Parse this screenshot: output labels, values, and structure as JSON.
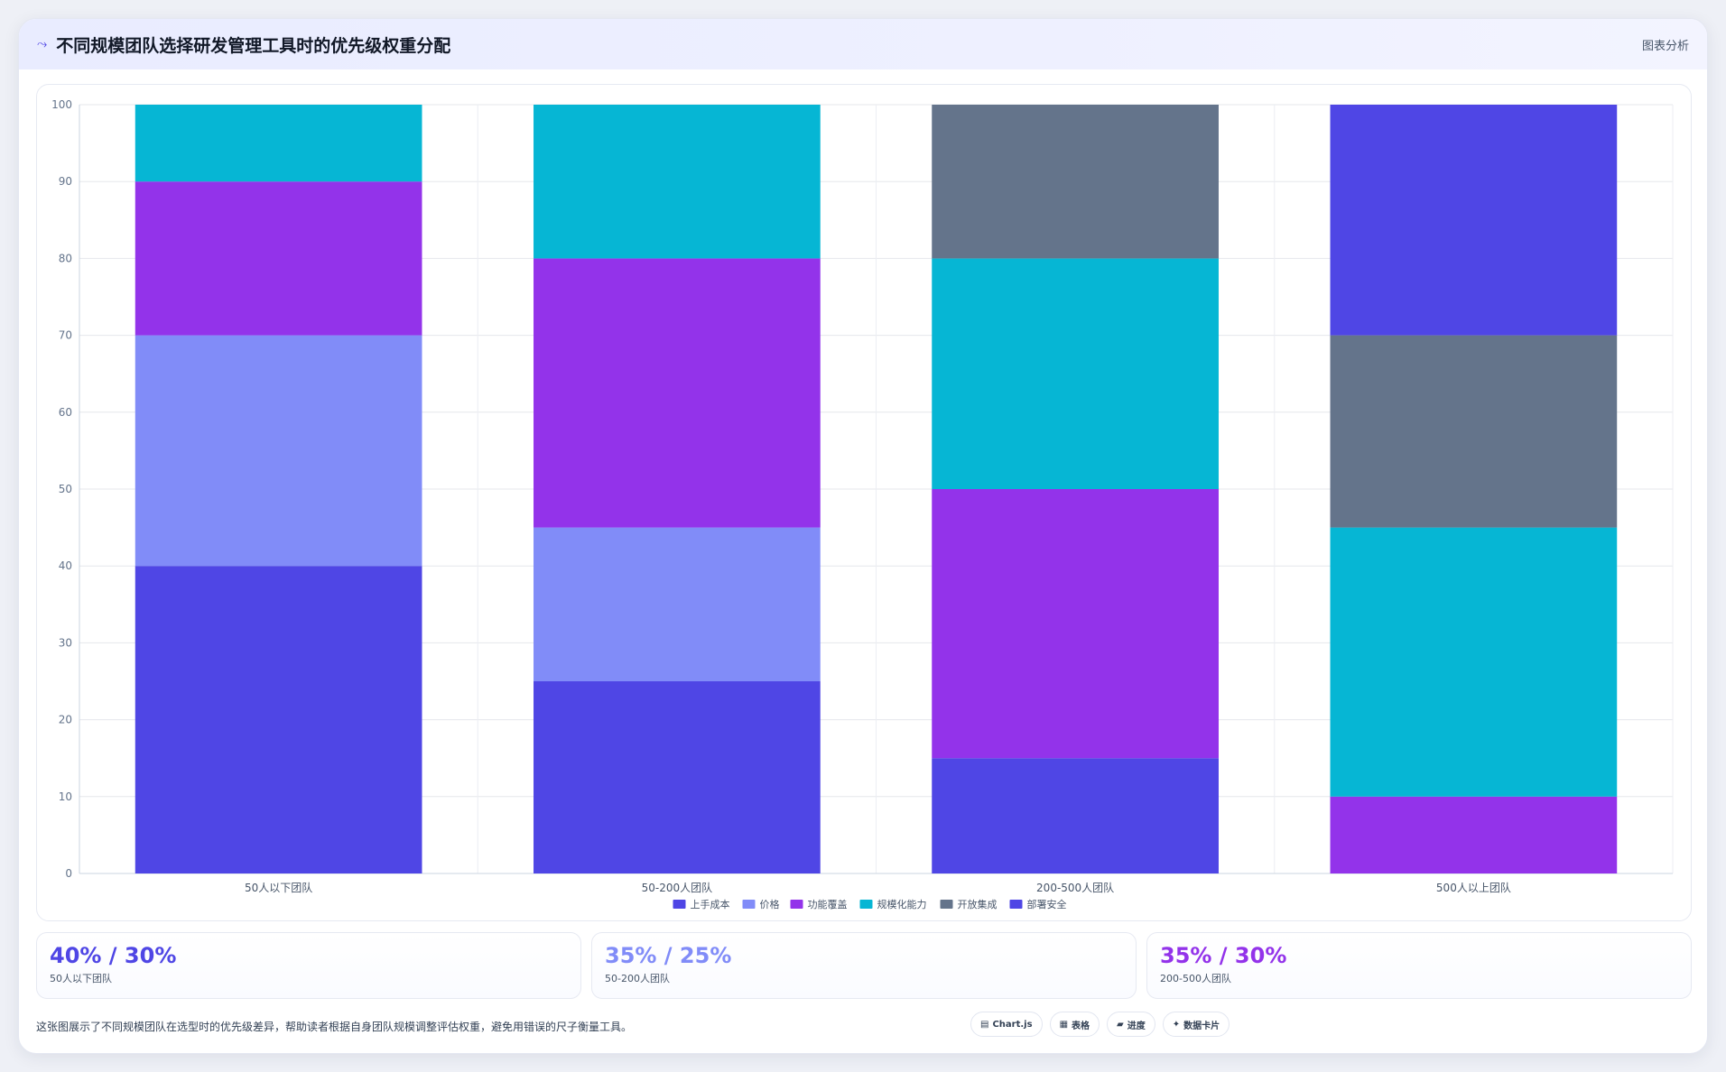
{
  "header": {
    "title": "不同规模团队选择研发管理工具时的优先级权重分配",
    "badge": "图表分析"
  },
  "chart_data": {
    "type": "bar",
    "stacked": true,
    "categories": [
      "50人以下团队",
      "50-200人团队",
      "200-500人团队",
      "500人以上团队"
    ],
    "series": [
      {
        "name": "上手成本",
        "color": "#4f46e5",
        "values": [
          40,
          25,
          15,
          0
        ]
      },
      {
        "name": "价格",
        "color": "#818cf8",
        "values": [
          30,
          20,
          0,
          0
        ]
      },
      {
        "name": "功能覆盖",
        "color": "#9333ea",
        "values": [
          20,
          35,
          35,
          10
        ]
      },
      {
        "name": "规模化能力",
        "color": "#06b6d4",
        "values": [
          10,
          20,
          30,
          35
        ]
      },
      {
        "name": "开放集成",
        "color": "#64748b",
        "values": [
          0,
          0,
          20,
          25
        ]
      },
      {
        "name": "部署安全",
        "color": "#4f46e5",
        "values": [
          0,
          0,
          0,
          30
        ]
      }
    ],
    "yticks": [
      0,
      10,
      20,
      30,
      40,
      50,
      60,
      70,
      80,
      90,
      100
    ],
    "ylim": [
      0,
      100
    ],
    "grid": true,
    "legend": "bottom"
  },
  "stats": [
    {
      "value": "40% / 30%",
      "label": "50人以下团队",
      "color": "#4f46e5"
    },
    {
      "value": "35% / 25%",
      "label": "50-200人团队",
      "color": "#818cf8"
    },
    {
      "value": "35% / 30%",
      "label": "200-500人团队",
      "color": "#9333ea"
    }
  ],
  "footer": {
    "description": "这张图展示了不同规模团队在选型时的优先级差异，帮助读者根据自身团队规模调整评估权重，避免用错误的尺子衡量工具。",
    "pills": [
      {
        "icon": "▤",
        "label": "Chart.js"
      },
      {
        "icon": "▦",
        "label": "表格"
      },
      {
        "icon": "▰",
        "label": "进度"
      },
      {
        "icon": "✦",
        "label": "数据卡片"
      }
    ]
  }
}
